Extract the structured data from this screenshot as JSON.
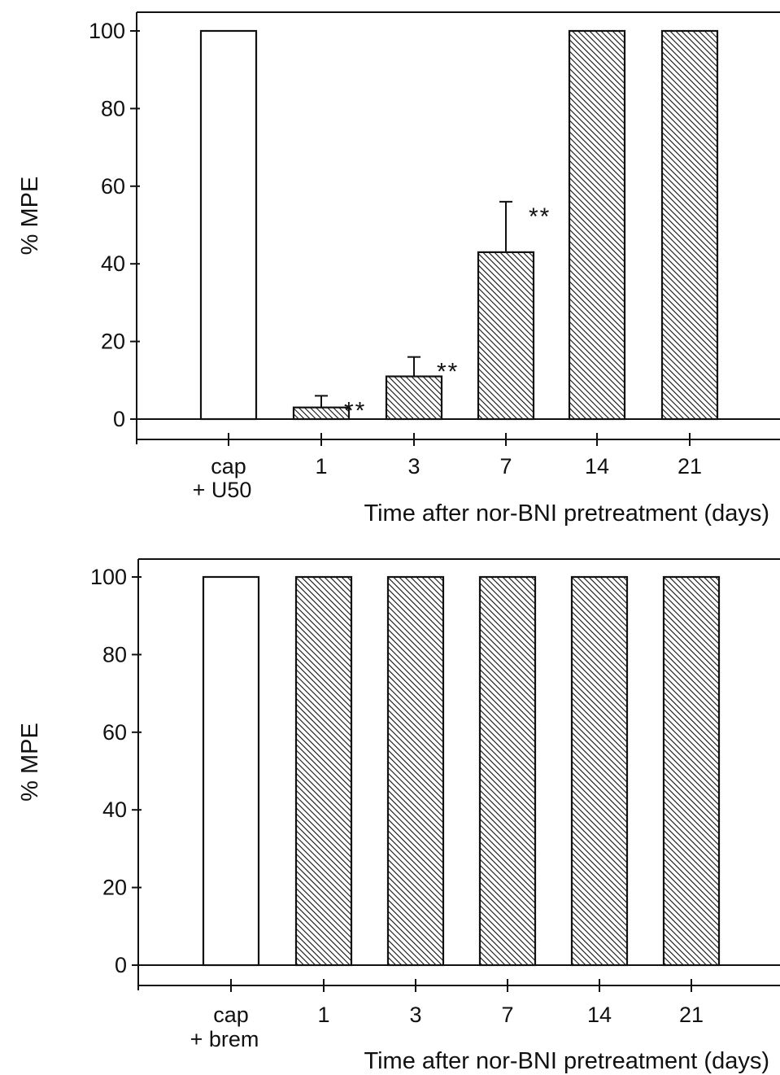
{
  "chart_data": [
    {
      "type": "bar",
      "title": "",
      "xlabel": "Time after nor-BNI pretreatment (days)",
      "ylabel": "% MPE",
      "ylim": [
        0,
        100
      ],
      "yticks": [
        "0",
        "20",
        "40",
        "60",
        "80",
        "100"
      ],
      "categories": [
        {
          "line1": "cap",
          "line2": "+ U50"
        },
        {
          "line1": "1",
          "line2": ""
        },
        {
          "line1": "3",
          "line2": ""
        },
        {
          "line1": "7",
          "line2": ""
        },
        {
          "line1": "14",
          "line2": ""
        },
        {
          "line1": "21",
          "line2": ""
        }
      ],
      "values": [
        100,
        3,
        11,
        43,
        100,
        100
      ],
      "error_plus": [
        0,
        3,
        5,
        13,
        0,
        0
      ],
      "significance": [
        "",
        "**",
        "**",
        "**",
        "",
        ""
      ],
      "fill": [
        "open",
        "hatched",
        "hatched",
        "hatched",
        "hatched",
        "hatched"
      ],
      "grid": false
    },
    {
      "type": "bar",
      "title": "",
      "xlabel": "Time after nor-BNI pretreatment (days)",
      "ylabel": "% MPE",
      "ylim": [
        0,
        100
      ],
      "yticks": [
        "0",
        "20",
        "40",
        "60",
        "80",
        "100"
      ],
      "categories": [
        {
          "line1": "cap",
          "line2": "+ brem"
        },
        {
          "line1": "1",
          "line2": ""
        },
        {
          "line1": "3",
          "line2": ""
        },
        {
          "line1": "7",
          "line2": ""
        },
        {
          "line1": "14",
          "line2": ""
        },
        {
          "line1": "21",
          "line2": ""
        }
      ],
      "values": [
        100,
        100,
        100,
        100,
        100,
        100
      ],
      "error_plus": [
        0,
        0,
        0,
        0,
        0,
        0
      ],
      "significance": [
        "",
        "",
        "",
        "",
        "",
        ""
      ],
      "fill": [
        "open",
        "hatched",
        "hatched",
        "hatched",
        "hatched",
        "hatched"
      ],
      "grid": false
    }
  ]
}
